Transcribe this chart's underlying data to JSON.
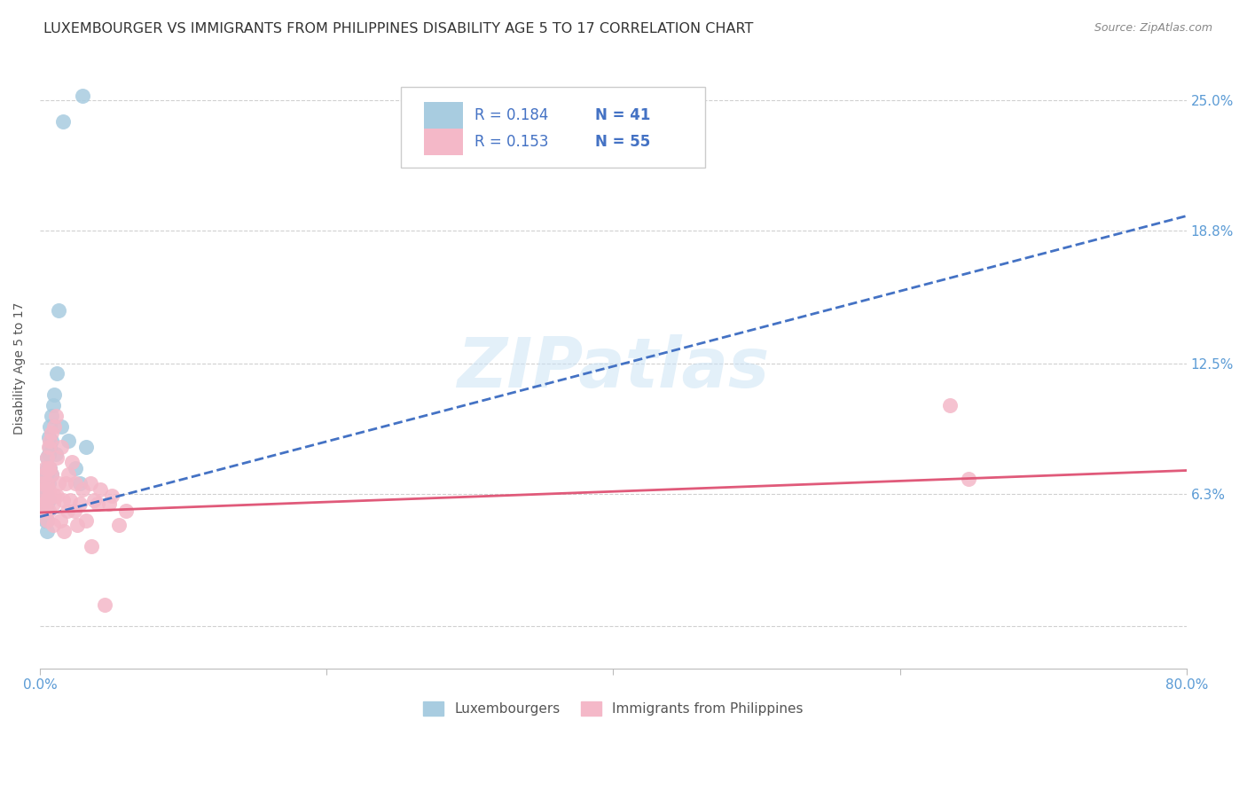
{
  "title": "LUXEMBOURGER VS IMMIGRANTS FROM PHILIPPINES DISABILITY AGE 5 TO 17 CORRELATION CHART",
  "source": "Source: ZipAtlas.com",
  "ylabel": "Disability Age 5 to 17",
  "watermark": "ZIPatlas",
  "legend_blue_label": "Luxembourgers",
  "legend_pink_label": "Immigrants from Philippines",
  "legend_blue_R": "R = 0.184",
  "legend_blue_N": "N = 41",
  "legend_pink_R": "R = 0.153",
  "legend_pink_N": "N = 55",
  "xlim": [
    0.0,
    0.8
  ],
  "ylim": [
    -0.02,
    0.265
  ],
  "yticks": [
    0.0,
    0.063,
    0.125,
    0.188,
    0.25
  ],
  "ytick_labels": [
    "",
    "6.3%",
    "12.5%",
    "18.8%",
    "25.0%"
  ],
  "xticks": [
    0.0,
    0.2,
    0.4,
    0.6,
    0.8
  ],
  "xtick_labels": [
    "0.0%",
    "",
    "",
    "",
    "80.0%"
  ],
  "blue_scatter_color": "#a8cce0",
  "pink_scatter_color": "#f4b8c8",
  "blue_line_color": "#4472c4",
  "pink_line_color": "#e05a7a",
  "legend_text_color": "#4472c4",
  "axis_label_color": "#5b9bd5",
  "grid_color": "#d0d0d0",
  "background_color": "#ffffff",
  "title_color": "#333333",
  "title_fontsize": 11.5,
  "source_fontsize": 9,
  "axis_fontsize": 10,
  "tick_fontsize": 11,
  "blue_regression": [
    0.0,
    0.8,
    0.052,
    0.195
  ],
  "pink_regression": [
    0.0,
    0.8,
    0.054,
    0.074
  ],
  "blue_scatter": {
    "x": [
      0.002,
      0.003,
      0.003,
      0.004,
      0.004,
      0.004,
      0.004,
      0.004,
      0.004,
      0.005,
      0.005,
      0.005,
      0.005,
      0.005,
      0.005,
      0.005,
      0.005,
      0.005,
      0.006,
      0.006,
      0.006,
      0.006,
      0.006,
      0.007,
      0.007,
      0.007,
      0.008,
      0.008,
      0.008,
      0.009,
      0.01,
      0.011,
      0.012,
      0.013,
      0.015,
      0.016,
      0.02,
      0.025,
      0.028,
      0.03,
      0.032
    ],
    "y": [
      0.065,
      0.068,
      0.06,
      0.072,
      0.068,
      0.063,
      0.058,
      0.055,
      0.05,
      0.08,
      0.075,
      0.072,
      0.068,
      0.062,
      0.058,
      0.055,
      0.05,
      0.045,
      0.09,
      0.082,
      0.075,
      0.068,
      0.06,
      0.095,
      0.085,
      0.075,
      0.1,
      0.088,
      0.072,
      0.105,
      0.11,
      0.082,
      0.12,
      0.15,
      0.095,
      0.24,
      0.088,
      0.075,
      0.068,
      0.252,
      0.085
    ]
  },
  "pink_scatter": {
    "x": [
      0.002,
      0.002,
      0.003,
      0.003,
      0.004,
      0.004,
      0.004,
      0.005,
      0.005,
      0.005,
      0.005,
      0.006,
      0.006,
      0.006,
      0.006,
      0.007,
      0.007,
      0.007,
      0.008,
      0.008,
      0.009,
      0.009,
      0.01,
      0.01,
      0.011,
      0.012,
      0.012,
      0.013,
      0.014,
      0.015,
      0.016,
      0.017,
      0.018,
      0.019,
      0.02,
      0.021,
      0.022,
      0.024,
      0.025,
      0.026,
      0.028,
      0.03,
      0.032,
      0.035,
      0.036,
      0.038,
      0.04,
      0.042,
      0.045,
      0.048,
      0.05,
      0.055,
      0.06,
      0.635,
      0.648
    ],
    "y": [
      0.068,
      0.058,
      0.072,
      0.06,
      0.075,
      0.065,
      0.055,
      0.08,
      0.068,
      0.06,
      0.05,
      0.085,
      0.075,
      0.065,
      0.055,
      0.088,
      0.075,
      0.062,
      0.092,
      0.072,
      0.058,
      0.048,
      0.095,
      0.062,
      0.1,
      0.08,
      0.062,
      0.068,
      0.05,
      0.085,
      0.06,
      0.045,
      0.068,
      0.055,
      0.072,
      0.06,
      0.078,
      0.055,
      0.068,
      0.048,
      0.058,
      0.065,
      0.05,
      0.068,
      0.038,
      0.06,
      0.058,
      0.065,
      0.01,
      0.058,
      0.062,
      0.048,
      0.055,
      0.105,
      0.07
    ]
  }
}
